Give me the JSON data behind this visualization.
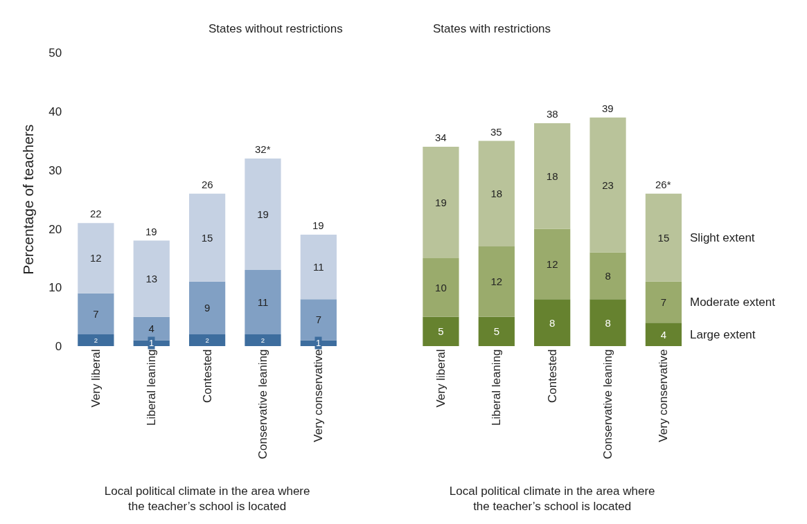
{
  "chart_data": [
    {
      "type": "bar",
      "title": "States without restrictions",
      "ylabel": "Percentage of teachers",
      "xlabel": "Local political climate in the area where the teacher’s school is located",
      "categories": [
        "Very liberal",
        "Liberal leaning",
        "Contested",
        "Conservative leaning",
        "Very conservative"
      ],
      "stacked": true,
      "data_labels": true,
      "ylim": [
        0,
        50
      ],
      "yticks": [
        0,
        10,
        20,
        30,
        40,
        50
      ],
      "totals": [
        "22",
        "19",
        "26",
        "32*",
        "19"
      ],
      "series": [
        {
          "color": "#3d6d9e",
          "values": [
            2,
            1,
            2,
            2,
            1
          ]
        },
        {
          "color": "#81a0c4",
          "values": [
            7,
            4,
            9,
            11,
            7
          ]
        },
        {
          "color": "#c5d1e3",
          "values": [
            12,
            13,
            15,
            19,
            11
          ]
        }
      ]
    },
    {
      "type": "bar",
      "title": "States with restrictions",
      "xlabel": "Local political climate in the area where the teacher’s school is located",
      "categories": [
        "Very liberal",
        "Liberal leaning",
        "Contested",
        "Conservative leaning",
        "Very conservative"
      ],
      "stacked": true,
      "data_labels": true,
      "ylim": [
        0,
        50
      ],
      "tick_labels": "x",
      "legend": "right",
      "totals": [
        "34",
        "35",
        "38",
        "39",
        "26*"
      ],
      "series": [
        {
          "name": "Large extent",
          "color": "#66822f",
          "values": [
            5,
            5,
            8,
            8,
            4
          ]
        },
        {
          "name": "Moderate extent",
          "color": "#9aab6c",
          "values": [
            10,
            12,
            12,
            8,
            7
          ]
        },
        {
          "name": "Slight extent",
          "color": "#b9c39a",
          "values": [
            19,
            18,
            18,
            23,
            15
          ]
        }
      ]
    }
  ]
}
